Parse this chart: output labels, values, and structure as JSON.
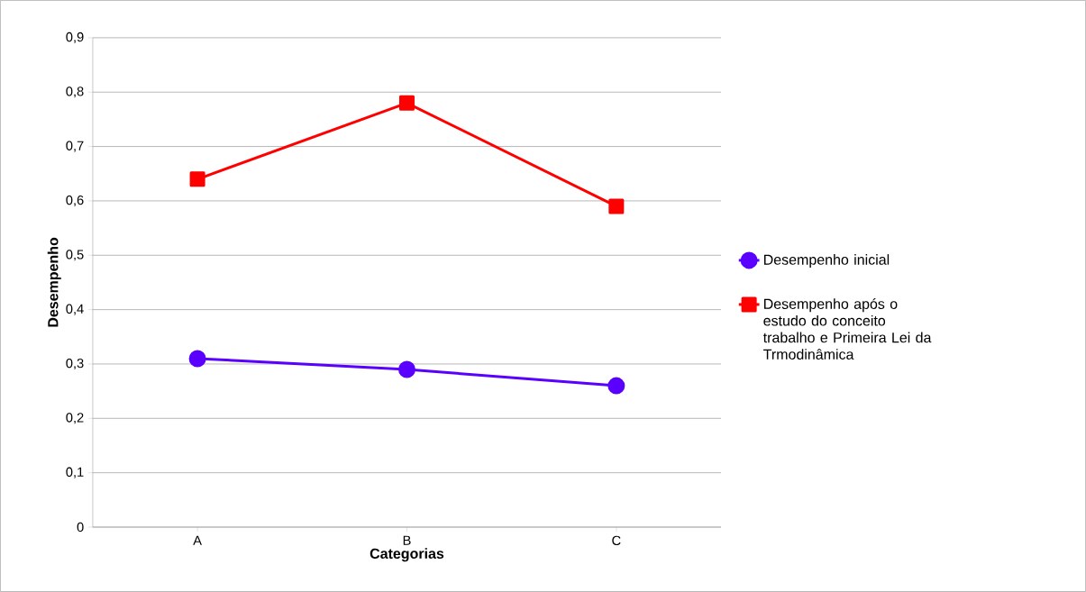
{
  "chart_data": {
    "type": "line",
    "xlabel": "Categorias",
    "ylabel": "Desempenho",
    "categories": [
      "A",
      "B",
      "C"
    ],
    "series": [
      {
        "name": "Desempenho inicial",
        "color": "#5a00ff",
        "marker": "circle",
        "values": [
          0.31,
          0.29,
          0.26
        ]
      },
      {
        "name": "Desempenho após o estudo do conceito trabalho e Primeira Lei da Trmodinâmica",
        "color": "#ff0000",
        "marker": "square",
        "values": [
          0.64,
          0.78,
          0.59
        ]
      }
    ],
    "ylim": [
      0,
      0.9
    ],
    "yticks": [
      {
        "value": 0,
        "label": "0"
      },
      {
        "value": 0.1,
        "label": "0,1"
      },
      {
        "value": 0.2,
        "label": "0,2"
      },
      {
        "value": 0.3,
        "label": "0,3"
      },
      {
        "value": 0.4,
        "label": "0,4"
      },
      {
        "value": 0.5,
        "label": "0,5"
      },
      {
        "value": 0.6,
        "label": "0,6"
      },
      {
        "value": 0.7,
        "label": "0,7"
      },
      {
        "value": 0.8,
        "label": "0,8"
      },
      {
        "value": 0.9,
        "label": "0,9"
      }
    ],
    "grid": "y",
    "legend": "right",
    "line_style": "solid"
  }
}
